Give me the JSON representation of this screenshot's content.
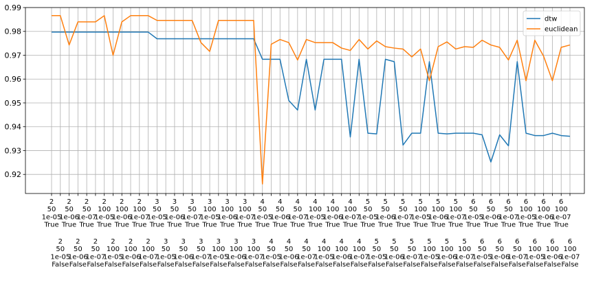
{
  "chart_data": {
    "type": "line",
    "title": "",
    "xlabel": "",
    "ylabel": "",
    "ylim": [
      0.912,
      0.99
    ],
    "yticks": [
      0.92,
      0.93,
      0.94,
      0.95,
      0.96,
      0.97,
      0.98,
      0.99
    ],
    "grid": true,
    "legend_position": "upper-right",
    "categories": [
      [
        "2",
        "50",
        "1e-05",
        "True"
      ],
      [
        "2",
        "50",
        "1e-05",
        "False"
      ],
      [
        "2",
        "50",
        "1e-06",
        "True"
      ],
      [
        "2",
        "50",
        "1e-06",
        "False"
      ],
      [
        "2",
        "50",
        "1e-07",
        "True"
      ],
      [
        "2",
        "50",
        "1e-07",
        "False"
      ],
      [
        "2",
        "100",
        "1e-05",
        "True"
      ],
      [
        "2",
        "100",
        "1e-05",
        "False"
      ],
      [
        "2",
        "100",
        "1e-06",
        "True"
      ],
      [
        "2",
        "100",
        "1e-06",
        "False"
      ],
      [
        "2",
        "100",
        "1e-07",
        "True"
      ],
      [
        "2",
        "100",
        "1e-07",
        "False"
      ],
      [
        "3",
        "50",
        "1e-05",
        "True"
      ],
      [
        "3",
        "50",
        "1e-05",
        "False"
      ],
      [
        "3",
        "50",
        "1e-06",
        "True"
      ],
      [
        "3",
        "50",
        "1e-06",
        "False"
      ],
      [
        "3",
        "50",
        "1e-07",
        "True"
      ],
      [
        "3",
        "50",
        "1e-07",
        "False"
      ],
      [
        "3",
        "100",
        "1e-05",
        "True"
      ],
      [
        "3",
        "100",
        "1e-05",
        "False"
      ],
      [
        "3",
        "100",
        "1e-06",
        "True"
      ],
      [
        "3",
        "100",
        "1e-06",
        "False"
      ],
      [
        "3",
        "100",
        "1e-07",
        "True"
      ],
      [
        "3",
        "100",
        "1e-07",
        "False"
      ],
      [
        "4",
        "50",
        "1e-05",
        "True"
      ],
      [
        "4",
        "50",
        "1e-05",
        "False"
      ],
      [
        "4",
        "50",
        "1e-06",
        "True"
      ],
      [
        "4",
        "50",
        "1e-06",
        "False"
      ],
      [
        "4",
        "50",
        "1e-07",
        "True"
      ],
      [
        "4",
        "50",
        "1e-07",
        "False"
      ],
      [
        "4",
        "100",
        "1e-05",
        "True"
      ],
      [
        "4",
        "100",
        "1e-05",
        "False"
      ],
      [
        "4",
        "100",
        "1e-06",
        "True"
      ],
      [
        "4",
        "100",
        "1e-06",
        "False"
      ],
      [
        "4",
        "100",
        "1e-07",
        "True"
      ],
      [
        "4",
        "100",
        "1e-07",
        "False"
      ],
      [
        "5",
        "50",
        "1e-05",
        "True"
      ],
      [
        "5",
        "50",
        "1e-05",
        "False"
      ],
      [
        "5",
        "50",
        "1e-06",
        "True"
      ],
      [
        "5",
        "50",
        "1e-06",
        "False"
      ],
      [
        "5",
        "50",
        "1e-07",
        "True"
      ],
      [
        "5",
        "50",
        "1e-07",
        "False"
      ],
      [
        "5",
        "100",
        "1e-05",
        "True"
      ],
      [
        "5",
        "100",
        "1e-05",
        "False"
      ],
      [
        "5",
        "100",
        "1e-06",
        "True"
      ],
      [
        "5",
        "100",
        "1e-06",
        "False"
      ],
      [
        "5",
        "100",
        "1e-07",
        "True"
      ],
      [
        "5",
        "100",
        "1e-07",
        "False"
      ],
      [
        "6",
        "50",
        "1e-05",
        "True"
      ],
      [
        "6",
        "50",
        "1e-05",
        "False"
      ],
      [
        "6",
        "50",
        "1e-06",
        "True"
      ],
      [
        "6",
        "50",
        "1e-06",
        "False"
      ],
      [
        "6",
        "50",
        "1e-07",
        "True"
      ],
      [
        "6",
        "50",
        "1e-07",
        "False"
      ],
      [
        "6",
        "100",
        "1e-05",
        "True"
      ],
      [
        "6",
        "100",
        "1e-05",
        "False"
      ],
      [
        "6",
        "100",
        "1e-06",
        "True"
      ],
      [
        "6",
        "100",
        "1e-06",
        "False"
      ],
      [
        "6",
        "100",
        "1e-07",
        "True"
      ],
      [
        "6",
        "100",
        "1e-07",
        "False"
      ]
    ],
    "series": [
      {
        "name": "dtw",
        "color": "#1f77b4",
        "values": [
          0.9797,
          0.9797,
          0.9797,
          0.9797,
          0.9797,
          0.9797,
          0.9797,
          0.9797,
          0.9797,
          0.9797,
          0.9797,
          0.9797,
          0.9769,
          0.9769,
          0.9769,
          0.9769,
          0.9769,
          0.9769,
          0.9769,
          0.9769,
          0.9769,
          0.9769,
          0.9769,
          0.9769,
          0.9683,
          0.9683,
          0.9683,
          0.951,
          0.947,
          0.9683,
          0.947,
          0.9683,
          0.9683,
          0.9683,
          0.9357,
          0.9683,
          0.9373,
          0.937,
          0.9683,
          0.9673,
          0.9323,
          0.9373,
          0.9373,
          0.9673,
          0.9373,
          0.937,
          0.9373,
          0.9373,
          0.9373,
          0.9366,
          0.9252,
          0.9366,
          0.932,
          0.9673,
          0.9373,
          0.9363,
          0.9363,
          0.9373,
          0.9363,
          0.936
        ]
      },
      {
        "name": "euclidean",
        "color": "#ff7f0e",
        "values": [
          0.9866,
          0.9866,
          0.9743,
          0.984,
          0.984,
          0.984,
          0.9866,
          0.97,
          0.984,
          0.9866,
          0.9866,
          0.9866,
          0.9846,
          0.9846,
          0.9846,
          0.9846,
          0.9846,
          0.9753,
          0.9716,
          0.9846,
          0.9846,
          0.9846,
          0.9846,
          0.9846,
          0.916,
          0.9746,
          0.9766,
          0.9753,
          0.968,
          0.9766,
          0.9753,
          0.9753,
          0.9753,
          0.973,
          0.972,
          0.9766,
          0.9726,
          0.976,
          0.9736,
          0.973,
          0.9726,
          0.9693,
          0.9726,
          0.9593,
          0.9736,
          0.9756,
          0.9726,
          0.9736,
          0.9733,
          0.9763,
          0.9743,
          0.9733,
          0.968,
          0.9763,
          0.9593,
          0.9763,
          0.9696,
          0.9593,
          0.9733,
          0.9743
        ]
      }
    ]
  }
}
